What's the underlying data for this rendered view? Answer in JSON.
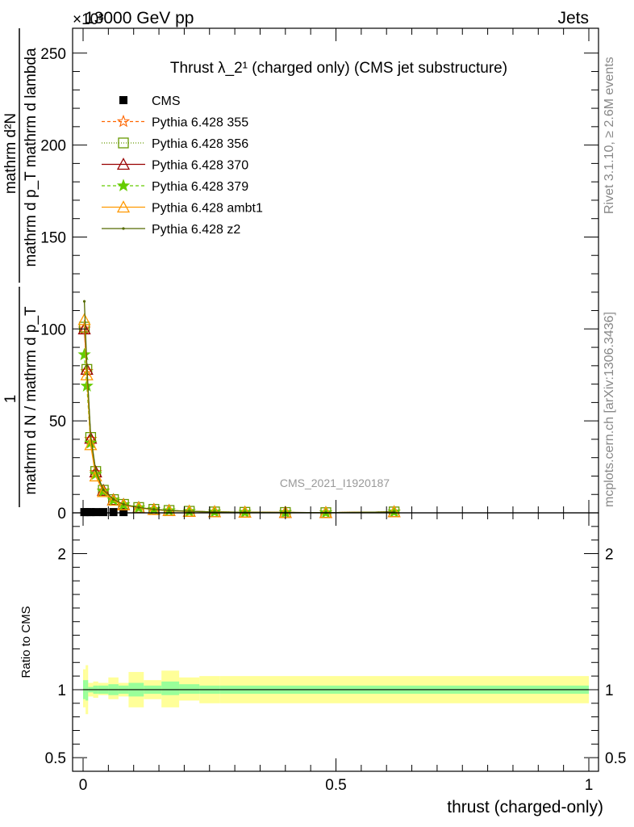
{
  "header": {
    "energy_label": "13000 GeV pp",
    "group_label": "Jets",
    "exponent_label": "×10³"
  },
  "side_labels": {
    "rivet": "Rivet 3.1.10, ≥ 2.6M events",
    "mcplots": "mcplots.cern.ch [arXiv:1306.3436]"
  },
  "watermark": "CMS_2021_I1920187",
  "chart_data": [
    {
      "type": "line",
      "title": "Thrust λ_2¹ (charged only) (CMS jet substructure)",
      "ylabel_numerator": "mathrm d²N",
      "ylabel_denominator": "mathrm d p_T mathrm d lambda",
      "ylabel_prefactor_num": "1",
      "ylabel_prefactor_den": "mathrm d N / mathrm d p_T",
      "xlim": [
        0,
        1
      ],
      "ylim": [
        0,
        260
      ],
      "yticks": [
        0,
        50,
        100,
        150,
        200,
        250
      ],
      "ytick_labels": [
        "0",
        "50",
        "100",
        "150",
        "200",
        "250"
      ],
      "y_scale_factor": "1e3",
      "x": [
        0.0025,
        0.0075,
        0.015,
        0.025,
        0.04,
        0.06,
        0.08,
        0.11,
        0.14,
        0.17,
        0.21,
        0.26,
        0.32,
        0.4,
        0.48,
        0.615
      ],
      "series": [
        {
          "name": "CMS",
          "marker": "square",
          "color": "#000000",
          "values": [
            0.4,
            0.4,
            0.4,
            0.4,
            0.4,
            0.4,
            0.4,
            0.4,
            0.3,
            0.3,
            0.2,
            0.1,
            0.1,
            0.05,
            0.05,
            0.05
          ]
        },
        {
          "name": "Pythia 6.428 355",
          "marker": "star-open",
          "color": "#ff6600",
          "dash": "4,3",
          "values": [
            100,
            77,
            40,
            22,
            12,
            7,
            4.5,
            2.8,
            1.8,
            1.2,
            0.8,
            0.5,
            0.3,
            0.2,
            0.1,
            0.5
          ]
        },
        {
          "name": "Pythia 6.428 356",
          "marker": "square-open",
          "color": "#669900",
          "dash": "1,2",
          "values": [
            101,
            78,
            41,
            22.5,
            12.3,
            7.2,
            4.6,
            2.9,
            1.9,
            1.3,
            0.85,
            0.5,
            0.3,
            0.2,
            0.1,
            0.5
          ]
        },
        {
          "name": "Pythia 6.428 370",
          "marker": "triangle-open",
          "color": "#990000",
          "dash": "",
          "values": [
            100,
            78,
            40.5,
            22.2,
            12.2,
            7.1,
            4.5,
            2.8,
            1.85,
            1.25,
            0.8,
            0.5,
            0.3,
            0.2,
            0.1,
            0.5
          ]
        },
        {
          "name": "Pythia 6.428 379",
          "marker": "star",
          "color": "#66cc00",
          "dash": "4,3",
          "values": [
            86,
            69,
            38,
            21,
            11.8,
            7,
            4.4,
            2.8,
            1.8,
            1.2,
            0.8,
            0.5,
            0.3,
            0.2,
            0.1,
            0.5
          ]
        },
        {
          "name": "Pythia 6.428 ambt1",
          "marker": "triangle-open",
          "color": "#ff9900",
          "dash": "",
          "values": [
            105,
            75,
            37,
            20,
            11.5,
            6.8,
            4.3,
            2.7,
            1.75,
            1.2,
            0.8,
            0.5,
            0.3,
            0.2,
            0.1,
            0.5
          ]
        },
        {
          "name": "Pythia 6.428 z2",
          "marker": "dot",
          "color": "#556b00",
          "dash": "",
          "values": [
            115,
            80,
            42,
            23,
            12.5,
            7.3,
            4.6,
            2.9,
            1.9,
            1.3,
            0.85,
            0.5,
            0.3,
            0.2,
            0.1,
            0.5
          ]
        }
      ],
      "legend_position": "top-left",
      "grid": false
    },
    {
      "type": "area",
      "ylabel": "Ratio to CMS",
      "xlabel": "thrust (charged-only)",
      "xlim": [
        0,
        1
      ],
      "ylim": [
        0.4,
        2.3
      ],
      "yticks": [
        0.5,
        1,
        2
      ],
      "ytick_labels": [
        "0.5",
        "1",
        "2"
      ],
      "xticks": [
        0,
        0.5,
        1
      ],
      "xtick_labels": [
        "0",
        "0.5",
        "1"
      ],
      "reference_value": 1,
      "bins": [
        0,
        0.005,
        0.01,
        0.02,
        0.03,
        0.05,
        0.07,
        0.09,
        0.12,
        0.155,
        0.19,
        0.23,
        0.27,
        1
      ],
      "stat_band": [
        [
          0.93,
          1.07
        ],
        [
          0.92,
          1.07
        ],
        [
          0.98,
          1.02
        ],
        [
          0.97,
          1.03
        ],
        [
          0.97,
          1.03
        ],
        [
          0.96,
          1.04
        ],
        [
          0.97,
          1.03
        ],
        [
          0.95,
          1.05
        ],
        [
          0.97,
          1.03
        ],
        [
          0.96,
          1.06
        ],
        [
          0.97,
          1.04
        ],
        [
          0.97,
          1.03
        ],
        [
          0.97,
          1.03
        ]
      ],
      "syst_band": [
        [
          0.87,
          1.15
        ],
        [
          0.82,
          1.18
        ],
        [
          0.95,
          1.05
        ],
        [
          0.94,
          1.06
        ],
        [
          0.96,
          1.05
        ],
        [
          0.93,
          1.09
        ],
        [
          0.95,
          1.05
        ],
        [
          0.87,
          1.13
        ],
        [
          0.93,
          1.07
        ],
        [
          0.87,
          1.14
        ],
        [
          0.92,
          1.09
        ],
        [
          0.9,
          1.1
        ],
        [
          0.9,
          1.1
        ]
      ],
      "stat_color": "#99ff99",
      "syst_color": "#ffff99"
    }
  ]
}
